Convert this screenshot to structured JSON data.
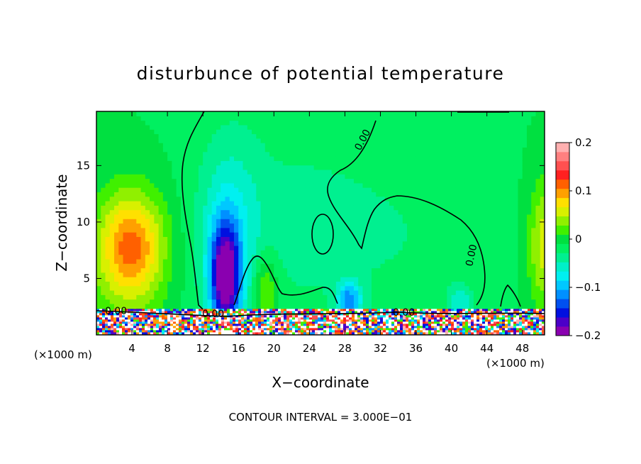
{
  "chart_data": {
    "type": "heatmap",
    "title": "disturbunce of potential temperature",
    "xlabel": "X−coordinate",
    "ylabel": "Z−coordinate",
    "x_unit_left": "(×1000 m)",
    "x_unit_right": "(×1000 m)",
    "footer": "CONTOUR INTERVAL = 3.000E−01",
    "xlim": [
      0,
      50.5
    ],
    "ylim": [
      0,
      19.8
    ],
    "xticks": [
      4,
      8,
      12,
      16,
      20,
      24,
      28,
      32,
      36,
      40,
      44,
      48
    ],
    "yticks": [
      5,
      10,
      15
    ],
    "colorbar": {
      "range": [
        -0.2,
        0.2
      ],
      "tick_values": [
        -0.2,
        -0.1,
        0,
        0.1,
        0.2
      ],
      "tick_labels": [
        "−0.2",
        "−0.1",
        "0",
        "0.1",
        "0.2"
      ],
      "colors": [
        "#8a00b0",
        "#4b00c8",
        "#0010e0",
        "#0050f0",
        "#0090ff",
        "#00c8ff",
        "#00f0f0",
        "#00f0c8",
        "#00f090",
        "#00f060",
        "#00e040",
        "#40f000",
        "#90f000",
        "#d8f000",
        "#ffe000",
        "#ffa000",
        "#ff6000",
        "#ff2020",
        "#ff5050",
        "#ff8080",
        "#ffb0b0"
      ]
    },
    "contour_labels": [
      "0.00",
      "0.00",
      "0.00",
      "0.00",
      "0.00"
    ],
    "background_value": -0.01,
    "anomalies": [
      {
        "label": "warm plume",
        "x": 4,
        "z": 8,
        "sx": 2.5,
        "sy": 3.2,
        "value": 0.1
      },
      {
        "label": "warm band",
        "x": 3,
        "z": 6,
        "sx": 3.5,
        "sy": 5,
        "value": 0.03
      },
      {
        "label": "warm right edge",
        "x": 50.5,
        "z": 8,
        "sx": 1.3,
        "sy": 4,
        "value": 0.07
      },
      {
        "label": "cold plume",
        "x": 14.5,
        "z": 5,
        "sx": 1.2,
        "sy": 3.5,
        "value": -0.17
      },
      {
        "label": "cold column",
        "x": 15,
        "z": 9,
        "sx": 2.5,
        "sy": 6,
        "value": -0.05
      },
      {
        "label": "cold broad region",
        "x": 22,
        "z": 10,
        "sx": 7,
        "sy": 7,
        "value": -0.02
      },
      {
        "label": "warm column",
        "x": 19,
        "z": 4,
        "sx": 1.0,
        "sy": 2.2,
        "value": 0.06
      },
      {
        "label": "cold eddy",
        "x": 28.5,
        "z": 3,
        "sx": 1.0,
        "sy": 1.2,
        "value": -0.1
      },
      {
        "label": "cold patch",
        "x": 34,
        "z": 9,
        "sx": 8,
        "sy": 5,
        "value": -0.015
      },
      {
        "label": "cold patch right",
        "x": 41,
        "z": 3,
        "sx": 1.0,
        "sy": 1.0,
        "value": -0.05
      }
    ]
  }
}
